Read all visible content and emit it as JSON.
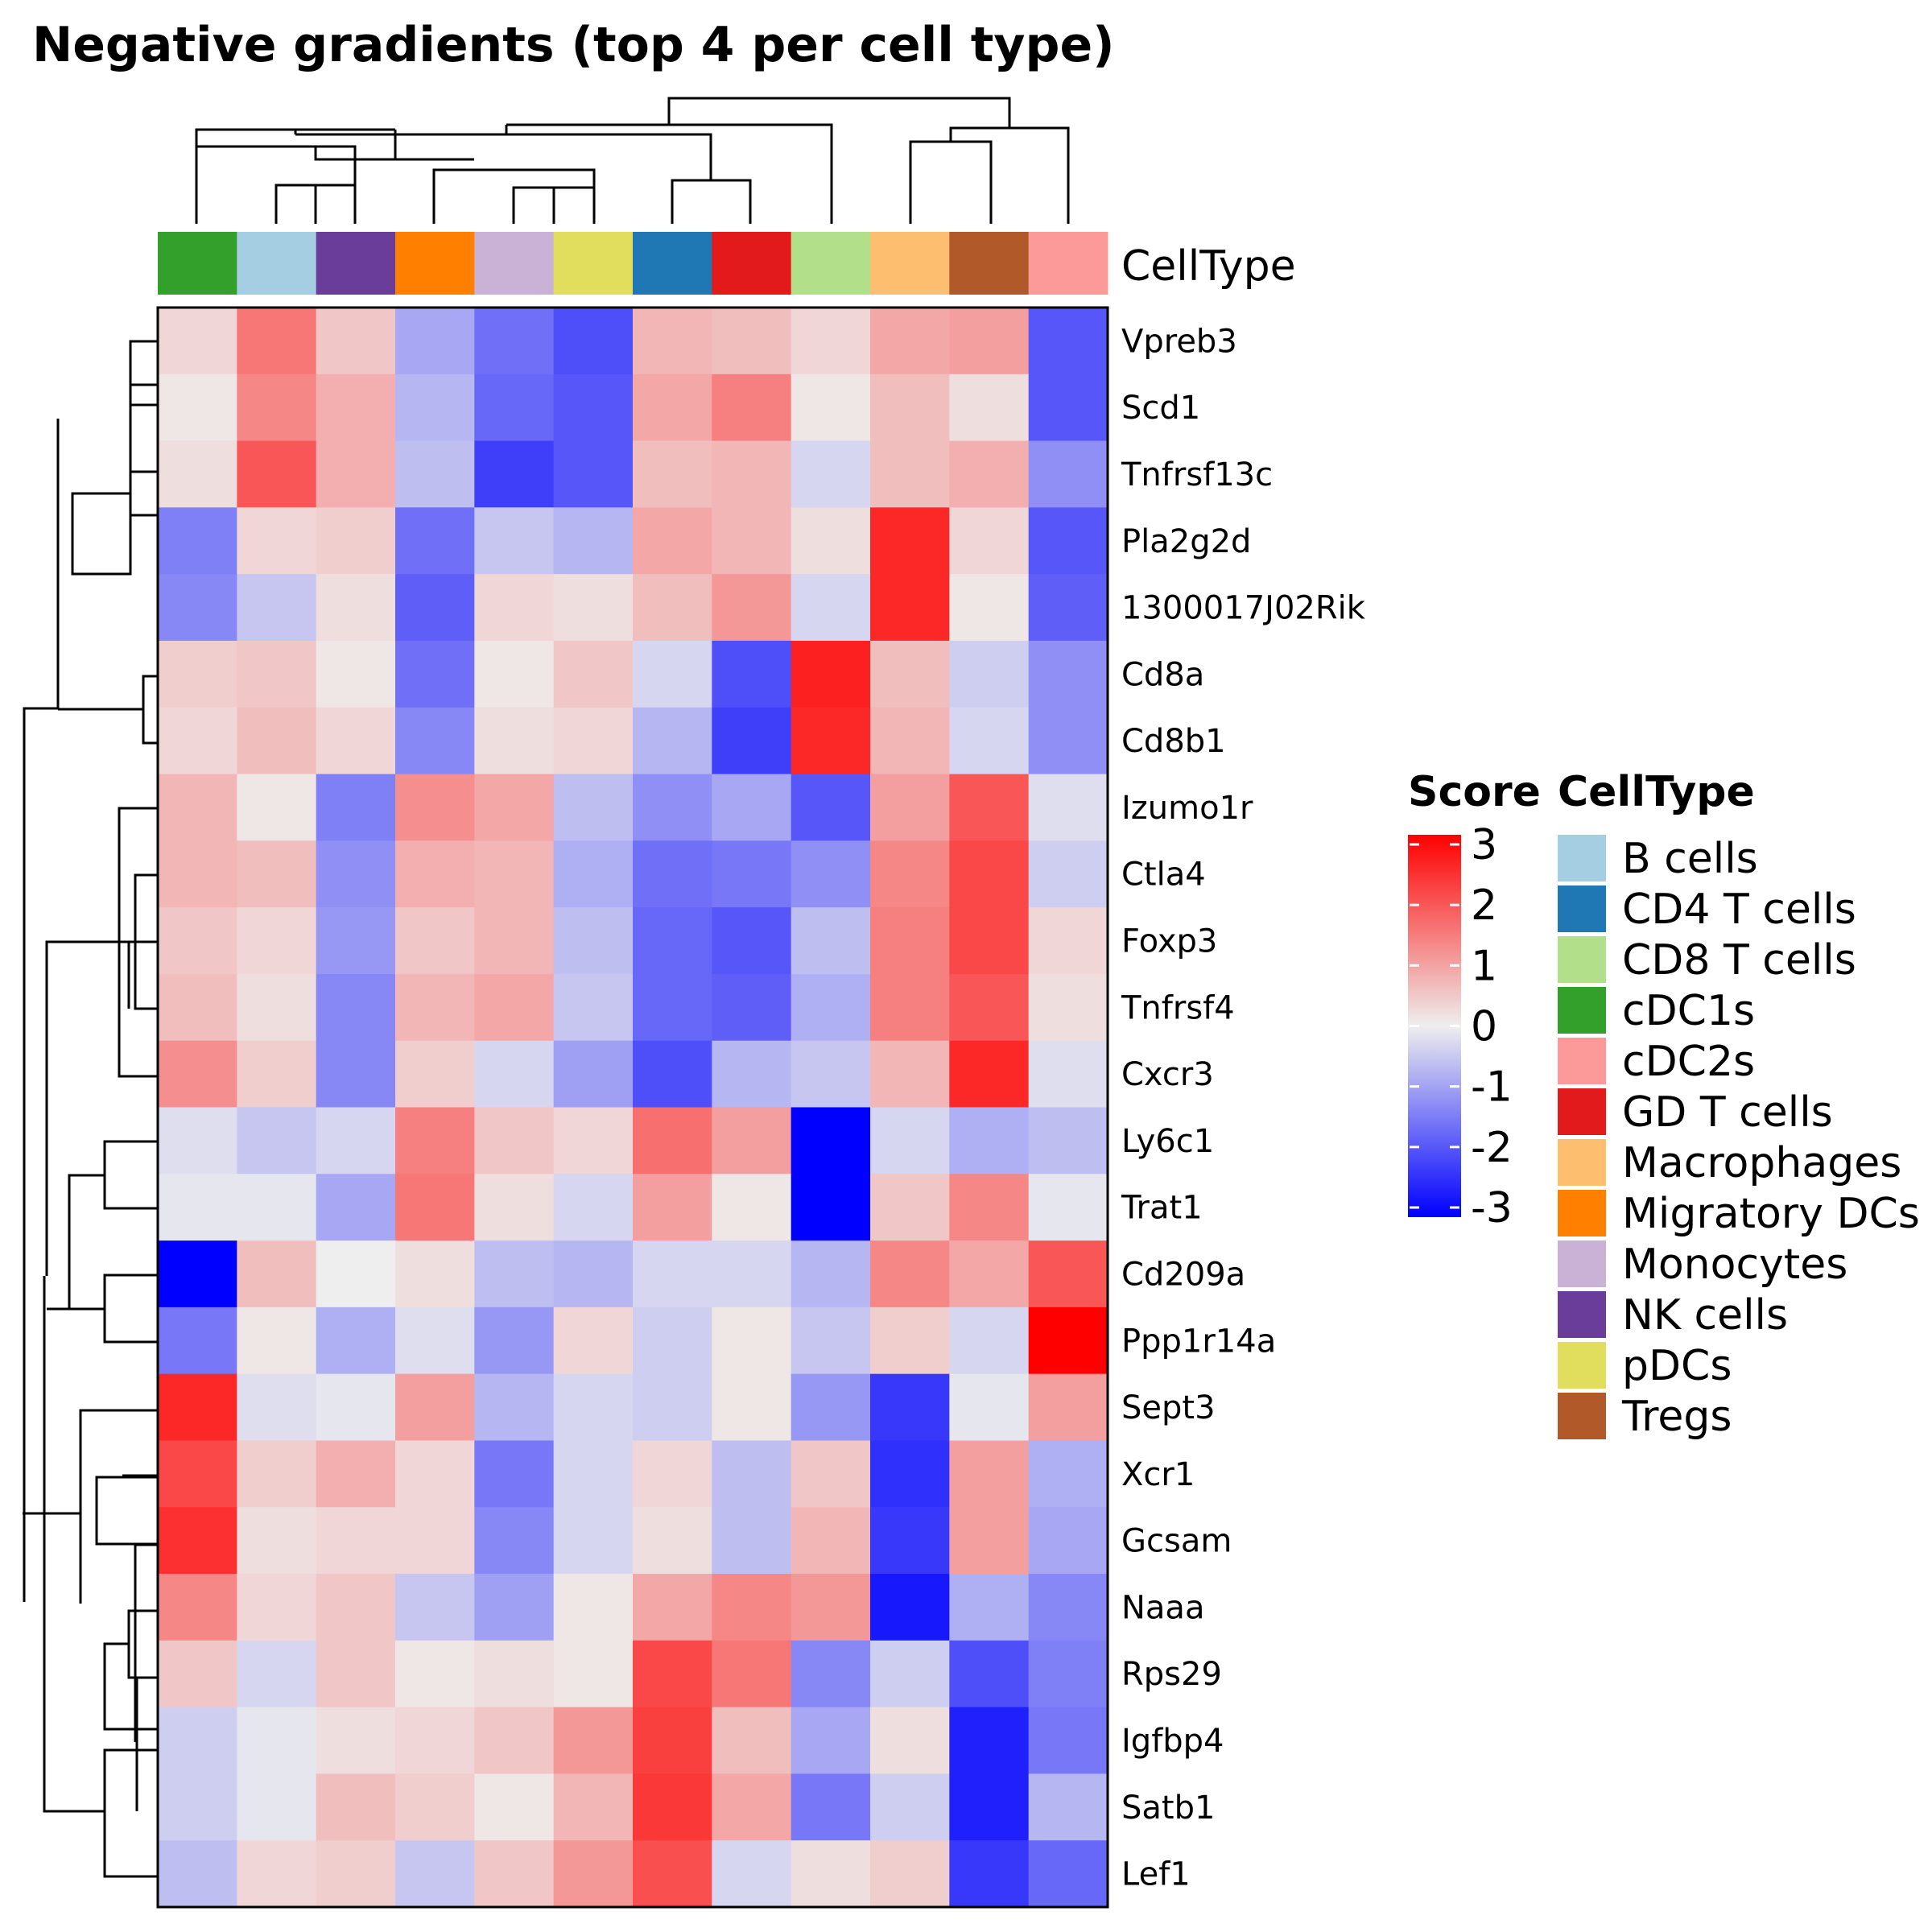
{
  "chart_data": {
    "type": "heatmap",
    "title": "Negative gradients (top 4 per cell type)",
    "annotation_label": "CellType",
    "columns": [
      "cDC1s",
      "B cells",
      "NK cells",
      "Migratory DCs",
      "Monocytes",
      "pDCs",
      "CD4 T cells",
      "GD T cells",
      "CD8 T cells",
      "Macrophages",
      "Tregs",
      "cDC2s"
    ],
    "rows": [
      "Vpreb3",
      "Scd1",
      "Tnfrsf13c",
      "Pla2g2d",
      "1300017J02Rik",
      "Cd8a",
      "Cd8b1",
      "Izumo1r",
      "Ctla4",
      "Foxp3",
      "Tnfrsf4",
      "Cxcr3",
      "Ly6c1",
      "Trat1",
      "Cd209a",
      "Ppp1r14a",
      "Sept3",
      "Xcr1",
      "Gcsam",
      "Naaa",
      "Rps29",
      "Igfbp4",
      "Satb1",
      "Lef1"
    ],
    "values": [
      [
        0.3,
        1.5,
        0.5,
        -0.9,
        -1.6,
        -2.0,
        0.7,
        0.6,
        0.3,
        0.9,
        1.0,
        -1.9
      ],
      [
        0.1,
        1.3,
        0.8,
        -0.7,
        -1.7,
        -1.9,
        0.9,
        1.4,
        0.1,
        0.6,
        0.2,
        -1.9
      ],
      [
        0.2,
        1.9,
        0.8,
        -0.6,
        -2.2,
        -1.9,
        0.6,
        0.7,
        -0.3,
        0.6,
        0.8,
        -1.2
      ],
      [
        -1.4,
        0.3,
        0.4,
        -1.6,
        -0.5,
        -0.7,
        0.9,
        0.7,
        0.2,
        2.5,
        0.3,
        -1.9
      ],
      [
        -1.3,
        -0.5,
        0.2,
        -1.8,
        0.3,
        0.2,
        0.6,
        1.1,
        -0.3,
        2.5,
        0.1,
        -1.8
      ],
      [
        0.4,
        0.5,
        0.1,
        -1.6,
        0.1,
        0.5,
        -0.3,
        -2.0,
        2.6,
        0.6,
        -0.4,
        -1.2
      ],
      [
        0.3,
        0.6,
        0.3,
        -1.3,
        0.2,
        0.3,
        -0.7,
        -2.2,
        2.5,
        0.7,
        -0.3,
        -1.2
      ],
      [
        0.7,
        0.1,
        -1.4,
        1.2,
        0.9,
        -0.6,
        -1.2,
        -0.9,
        -1.9,
        1.0,
        1.9,
        -0.2
      ],
      [
        0.7,
        0.6,
        -1.2,
        0.8,
        0.7,
        -0.8,
        -1.6,
        -1.5,
        -1.2,
        1.3,
        2.1,
        -0.4
      ],
      [
        0.5,
        0.3,
        -1.1,
        0.5,
        0.7,
        -0.6,
        -1.7,
        -1.9,
        -0.6,
        1.4,
        2.1,
        0.3
      ],
      [
        0.6,
        0.2,
        -1.3,
        0.7,
        0.9,
        -0.5,
        -1.7,
        -1.8,
        -0.8,
        1.4,
        1.9,
        0.2
      ],
      [
        1.2,
        0.4,
        -1.3,
        0.4,
        -0.3,
        -1.0,
        -2.0,
        -0.7,
        -0.5,
        0.7,
        2.5,
        -0.2
      ],
      [
        -0.2,
        -0.5,
        -0.3,
        1.4,
        0.5,
        0.3,
        1.6,
        1.0,
        -3.4,
        -0.3,
        -0.8,
        -0.6
      ],
      [
        -0.1,
        -0.1,
        -0.9,
        1.5,
        0.2,
        -0.3,
        1.0,
        0.1,
        -3.4,
        0.5,
        1.3,
        -0.1
      ],
      [
        -3.2,
        0.6,
        0.0,
        0.2,
        -0.6,
        -0.7,
        -0.3,
        -0.3,
        -0.7,
        1.3,
        0.9,
        1.9
      ],
      [
        -1.5,
        0.1,
        -0.8,
        -0.2,
        -1.1,
        0.3,
        -0.4,
        0.1,
        -0.5,
        0.4,
        -0.3,
        3.0
      ],
      [
        2.5,
        -0.2,
        -0.1,
        1.0,
        -0.7,
        -0.3,
        -0.4,
        0.1,
        -1.1,
        -2.3,
        -0.1,
        1.0
      ],
      [
        2.1,
        0.4,
        0.8,
        0.3,
        -1.5,
        -0.3,
        0.3,
        -0.6,
        0.5,
        -2.4,
        1.0,
        -0.8
      ],
      [
        2.4,
        0.2,
        0.3,
        0.3,
        -1.3,
        -0.3,
        0.2,
        -0.6,
        0.7,
        -2.3,
        1.0,
        -0.9
      ],
      [
        1.3,
        0.3,
        0.5,
        -0.5,
        -1.0,
        0.1,
        0.9,
        1.3,
        1.1,
        -2.7,
        -0.8,
        -1.3
      ],
      [
        0.5,
        -0.3,
        0.5,
        0.1,
        0.2,
        0.1,
        2.1,
        1.5,
        -1.3,
        -0.4,
        -2.0,
        -1.4
      ],
      [
        -0.4,
        -0.1,
        0.2,
        0.3,
        0.5,
        1.1,
        2.2,
        0.6,
        -0.9,
        0.2,
        -2.6,
        -1.5
      ],
      [
        -0.4,
        -0.1,
        0.6,
        0.4,
        0.1,
        0.7,
        2.3,
        0.9,
        -1.5,
        -0.4,
        -2.6,
        -0.7
      ],
      [
        -0.6,
        0.3,
        0.4,
        -0.5,
        0.5,
        1.1,
        2.0,
        -0.3,
        0.2,
        0.4,
        -2.3,
        -1.7
      ]
    ],
    "color_scale": {
      "low": "#0000FF",
      "mid": "#EEEEEE",
      "high": "#FF0000",
      "min": -3,
      "max": 3,
      "ticks": [
        "3",
        "2",
        "1",
        "0",
        "-1",
        "-2",
        "-3"
      ]
    },
    "legend_score_title": "Score",
    "legend_celltype_title": "CellType",
    "celltype_colors": {
      "B cells": "#A6CEE3",
      "CD4 T cells": "#1F78B4",
      "CD8 T cells": "#B2DF8A",
      "cDC1s": "#33A02C",
      "cDC2s": "#FB9A99",
      "GD T cells": "#E31A1C",
      "Macrophages": "#FDBF6F",
      "Migratory DCs": "#FF7F00",
      "Monocytes": "#CAB2D6",
      "NK cells": "#6A3D9A",
      "pDCs": "#E0DE5C",
      "Tregs": "#B15928"
    },
    "legend_order": [
      "B cells",
      "CD4 T cells",
      "CD8 T cells",
      "cDC1s",
      "cDC2s",
      "GD T cells",
      "Macrophages",
      "Migratory DCs",
      "Monocytes",
      "NK cells",
      "pDCs",
      "Tregs"
    ]
  }
}
